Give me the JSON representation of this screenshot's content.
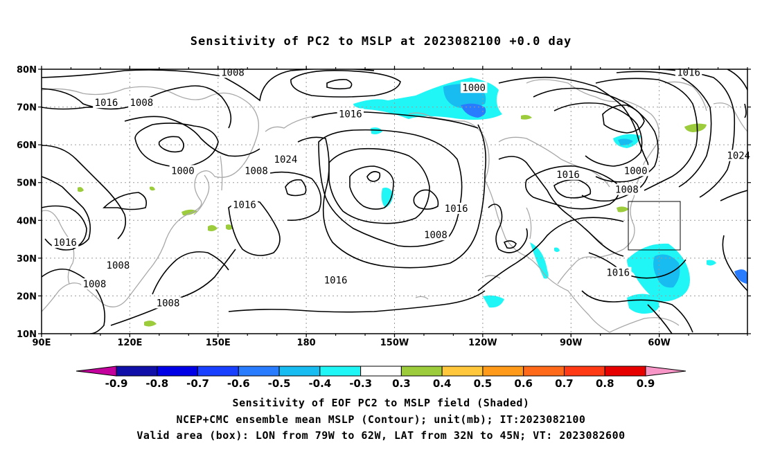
{
  "title": "Sensitivity of PC2 to MSLP at 2023082100 +0.0 day",
  "map": {
    "lat_ticks": [
      "80N",
      "70N",
      "60N",
      "50N",
      "40N",
      "30N",
      "20N",
      "10N"
    ],
    "lon_ticks": [
      "90E",
      "120E",
      "150E",
      "180",
      "150W",
      "120W",
      "90W",
      "60W"
    ],
    "lon_range": [
      90,
      330
    ],
    "lat_range": [
      10,
      80
    ],
    "contour_labels": [
      {
        "text": "1008",
        "lon": 155,
        "lat": 79
      },
      {
        "text": "1016",
        "lon": 310,
        "lat": 79
      },
      {
        "text": "1000",
        "lon": 237,
        "lat": 75
      },
      {
        "text": "1016",
        "lon": 112,
        "lat": 71
      },
      {
        "text": "1008",
        "lon": 124,
        "lat": 71
      },
      {
        "text": "1016",
        "lon": 195,
        "lat": 68
      },
      {
        "text": "1024",
        "lon": 173,
        "lat": 56
      },
      {
        "text": "1000",
        "lon": 138,
        "lat": 53
      },
      {
        "text": "1008",
        "lon": 163,
        "lat": 53
      },
      {
        "text": "1016",
        "lon": 269,
        "lat": 52
      },
      {
        "text": "1000",
        "lon": 292,
        "lat": 53
      },
      {
        "text": "1008",
        "lon": 289,
        "lat": 48
      },
      {
        "text": "1024",
        "lon": 327,
        "lat": 57
      },
      {
        "text": "1016",
        "lon": 231,
        "lat": 43
      },
      {
        "text": "1016",
        "lon": 159,
        "lat": 44
      },
      {
        "text": "1008",
        "lon": 224,
        "lat": 36
      },
      {
        "text": "1016",
        "lon": 98,
        "lat": 34
      },
      {
        "text": "1008",
        "lon": 116,
        "lat": 28
      },
      {
        "text": "1008",
        "lon": 108,
        "lat": 23
      },
      {
        "text": "1016",
        "lon": 286,
        "lat": 26
      },
      {
        "text": "1016",
        "lon": 190,
        "lat": 24
      },
      {
        "text": "1008",
        "lon": 133,
        "lat": 18
      }
    ],
    "box": {
      "lon_w": 79,
      "lon_e": 62,
      "lat_s": 32,
      "lat_n": 45
    }
  },
  "colorbar": {
    "labels": [
      "-0.9",
      "-0.8",
      "-0.7",
      "-0.6",
      "-0.5",
      "-0.4",
      "-0.3",
      "0.3",
      "0.4",
      "0.5",
      "0.6",
      "0.7",
      "0.8",
      "0.9"
    ],
    "colors": [
      "#c4009c",
      "#1010a8",
      "#0000e6",
      "#1a40ff",
      "#2a7cff",
      "#18bcf0",
      "#20f6f6",
      "#ffffff",
      "#9ccc3c",
      "#ffc83c",
      "#ff9a1a",
      "#ff6a1a",
      "#ff3a14",
      "#e60000",
      "#f896c8"
    ]
  },
  "captions": {
    "line1": "Sensitivity of EOF PC2 to MSLP field (Shaded)",
    "line2": "NCEP+CMC ensemble mean MSLP (Contour); unit(mb); IT:2023082100",
    "line3": "Valid area (box): LON from 79W to 62W, LAT from 32N to 45N; VT: 2023082600"
  }
}
